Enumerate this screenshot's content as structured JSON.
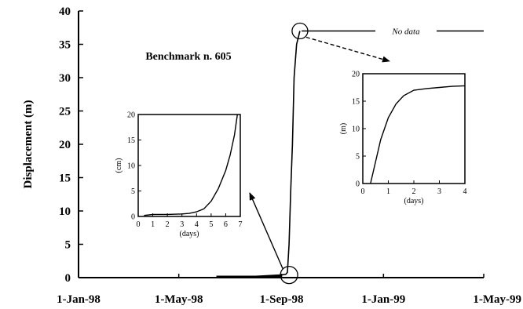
{
  "chart_data": [
    {
      "type": "line",
      "title": "",
      "xlabel": "",
      "ylabel": "Displacement (m)",
      "x_ticks": [
        "1-Jan-98",
        "1-May-98",
        "1-Sep-98",
        "1-Jan-99",
        "1-May-99"
      ],
      "x_range": [
        "1998-01-01",
        "1999-05-01"
      ],
      "ylim": [
        0,
        40
      ],
      "y_ticks": [
        "0",
        "5",
        "10",
        "15",
        "20",
        "25",
        "30",
        "35",
        "40"
      ],
      "grid": false,
      "annotations": [
        "Benchmark n. 605",
        "No data"
      ],
      "series": [
        {
          "x": [
            "1998-06-15",
            "1998-08-01",
            "1998-09-01",
            "1998-09-06",
            "1998-09-08",
            "1998-09-10",
            "1998-09-12",
            "1998-09-14",
            "1998-09-16",
            "1998-09-19",
            "1998-09-23"
          ],
          "y": [
            0,
            0.2,
            0.4,
            0.5,
            0.8,
            5,
            13,
            20,
            30,
            35,
            37
          ]
        },
        {
          "line_style": "no data gap",
          "x": [
            "1998-09-25",
            "1999-05-01"
          ],
          "y": [
            37,
            37
          ]
        }
      ]
    },
    {
      "type": "line",
      "inset": "left",
      "xlabel": "(days)",
      "ylabel": "(cm)",
      "xlim": [
        0,
        7
      ],
      "ylim": [
        0,
        20
      ],
      "x_ticks": [
        "0",
        "1",
        "2",
        "3",
        "4",
        "5",
        "6",
        "7"
      ],
      "y_ticks": [
        "0",
        "5",
        "10",
        "15",
        "20"
      ],
      "series": [
        {
          "x": [
            0.4,
            1,
            2,
            3,
            3.5,
            4,
            4.5,
            5,
            5.5,
            6,
            6.3,
            6.6,
            6.8
          ],
          "y": [
            0.2,
            0.4,
            0.4,
            0.5,
            0.6,
            0.9,
            1.5,
            3,
            5.5,
            9,
            12,
            16,
            20
          ]
        }
      ]
    },
    {
      "type": "line",
      "inset": "right",
      "xlabel": "(days)",
      "ylabel": "(m)",
      "xlim": [
        0,
        4
      ],
      "ylim": [
        0,
        20
      ],
      "x_ticks": [
        "0",
        "1",
        "2",
        "3",
        "4"
      ],
      "y_ticks": [
        "0",
        "5",
        "10",
        "15",
        "20"
      ],
      "series": [
        {
          "x": [
            0.3,
            0.5,
            0.7,
            1.0,
            1.3,
            1.6,
            2.0,
            2.5,
            3.0,
            3.5,
            4.0
          ],
          "y": [
            0,
            4,
            8,
            12,
            14.5,
            16,
            17,
            17.3,
            17.5,
            17.7,
            17.8
          ]
        }
      ]
    }
  ]
}
